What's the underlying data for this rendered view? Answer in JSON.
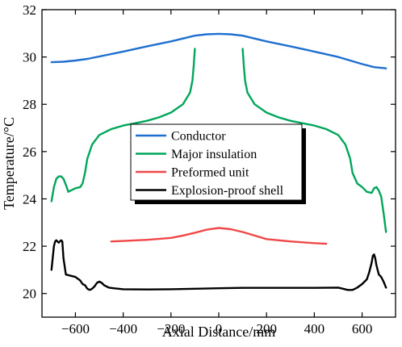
{
  "chart_data": {
    "type": "line",
    "title": "",
    "xlabel": "Axial Distance/mm",
    "ylabel": "Temperature/°C",
    "xlim": [
      -740,
      740
    ],
    "ylim": [
      19,
      32
    ],
    "xticks": [
      -600,
      -400,
      -200,
      0,
      200,
      400,
      600
    ],
    "yticks": [
      20,
      22,
      24,
      26,
      28,
      30,
      32
    ],
    "xtick_labels": [
      "−600",
      "−400",
      "−200",
      "0",
      "200",
      "400",
      "600"
    ],
    "ytick_labels": [
      "20",
      "22",
      "24",
      "26",
      "28",
      "30",
      "32"
    ],
    "grid": false,
    "legend_position": "center",
    "series": [
      {
        "name": "Conductor",
        "color": "#1f6fd0",
        "x": [
          -700,
          -650,
          -600,
          -550,
          -500,
          -400,
          -300,
          -200,
          -100,
          -50,
          0,
          50,
          100,
          200,
          300,
          400,
          500,
          600,
          650,
          700
        ],
        "y": [
          29.78,
          29.8,
          29.85,
          29.92,
          30.02,
          30.23,
          30.45,
          30.66,
          30.9,
          30.96,
          30.98,
          30.96,
          30.9,
          30.66,
          30.45,
          30.23,
          30.0,
          29.7,
          29.57,
          29.52
        ]
      },
      {
        "name": "Major insulation",
        "color": "#00a65a",
        "x": [
          -700,
          -690,
          -680,
          -670,
          -660,
          -650,
          -640,
          -630,
          -620,
          -600,
          -580,
          -570,
          -560,
          -550,
          -530,
          -500,
          -450,
          -400,
          -350,
          -300,
          -250,
          -200,
          -150,
          -120,
          -110,
          -105,
          -100,
          100,
          105,
          110,
          120,
          150,
          200,
          250,
          300,
          350,
          400,
          450,
          500,
          530,
          550,
          560,
          580,
          600,
          610,
          620,
          640,
          650,
          660,
          670,
          680,
          690,
          700
        ],
        "y": [
          23.9,
          24.5,
          24.85,
          24.95,
          24.95,
          24.85,
          24.6,
          24.3,
          24.35,
          24.45,
          24.5,
          24.65,
          25.1,
          25.7,
          26.3,
          26.7,
          26.95,
          27.1,
          27.2,
          27.3,
          27.45,
          27.65,
          28.0,
          28.5,
          29.0,
          29.6,
          30.35,
          30.35,
          29.6,
          29.0,
          28.5,
          28.0,
          27.65,
          27.45,
          27.3,
          27.2,
          27.1,
          26.95,
          26.7,
          26.3,
          25.7,
          25.1,
          24.65,
          24.5,
          24.4,
          24.3,
          24.25,
          24.45,
          24.5,
          24.35,
          24.1,
          23.4,
          22.6
        ]
      },
      {
        "name": "Preformed unit",
        "color": "#f04848",
        "x": [
          -450,
          -400,
          -300,
          -200,
          -150,
          -100,
          -50,
          0,
          50,
          100,
          150,
          200,
          300,
          400,
          450
        ],
        "y": [
          22.2,
          22.22,
          22.27,
          22.35,
          22.45,
          22.57,
          22.7,
          22.77,
          22.72,
          22.6,
          22.45,
          22.3,
          22.2,
          22.13,
          22.1
        ]
      },
      {
        "name": "Explosion-proof shell",
        "color": "#000000",
        "x": [
          -700,
          -695,
          -690,
          -685,
          -680,
          -675,
          -670,
          -665,
          -660,
          -655,
          -650,
          -640,
          -620,
          -600,
          -580,
          -570,
          -560,
          -550,
          -540,
          -530,
          -520,
          -510,
          -500,
          -490,
          -480,
          -470,
          -460,
          -440,
          -400,
          -300,
          -200,
          -100,
          0,
          100,
          200,
          300,
          400,
          500,
          520,
          540,
          560,
          580,
          600,
          620,
          630,
          640,
          645,
          650,
          655,
          660,
          665,
          670,
          680,
          690,
          700
        ],
        "y": [
          21.0,
          21.5,
          22.0,
          22.2,
          22.25,
          22.2,
          22.15,
          22.2,
          22.25,
          22.2,
          21.5,
          20.8,
          20.75,
          20.7,
          20.55,
          20.4,
          20.35,
          20.2,
          20.15,
          20.2,
          20.3,
          20.45,
          20.5,
          20.45,
          20.35,
          20.3,
          20.25,
          20.22,
          20.18,
          20.17,
          20.18,
          20.2,
          20.22,
          20.24,
          20.24,
          20.24,
          20.24,
          20.25,
          20.2,
          20.15,
          20.15,
          20.25,
          20.4,
          20.6,
          20.9,
          21.3,
          21.6,
          21.65,
          21.5,
          21.2,
          21.0,
          20.8,
          20.7,
          20.5,
          20.25
        ]
      }
    ],
    "legend": [
      "Conductor",
      "Major insulation",
      "Preformed unit",
      "Explosion-proof shell"
    ]
  }
}
